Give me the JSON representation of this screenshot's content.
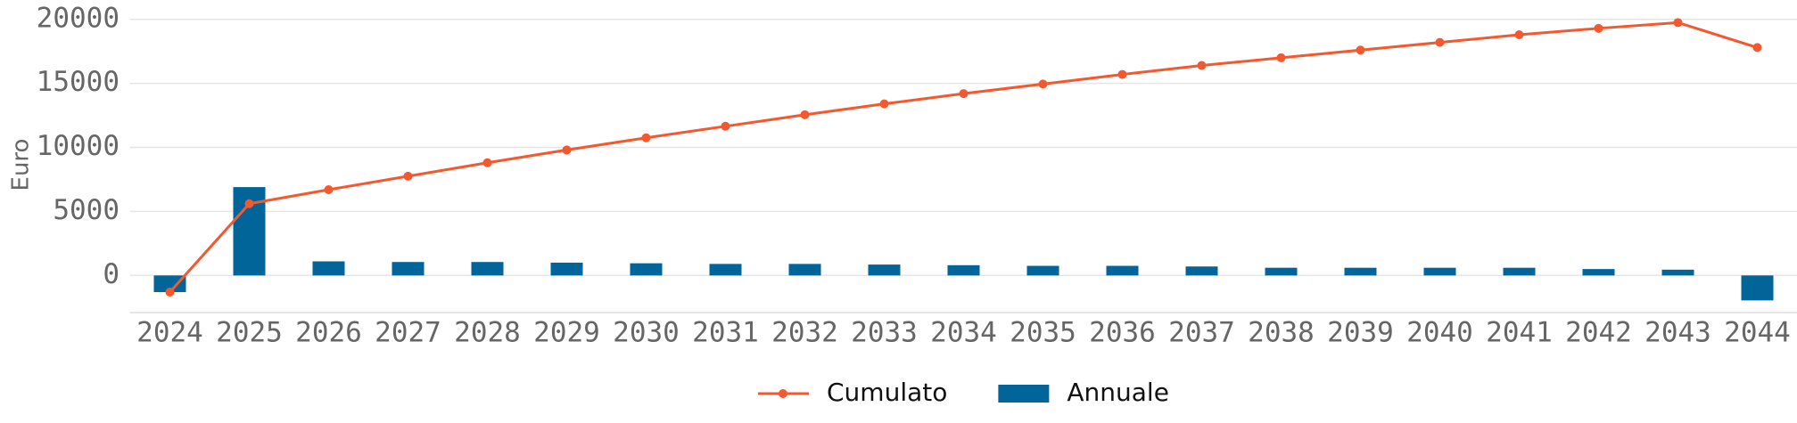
{
  "chart_data": {
    "type": "bar",
    "y_label": "Euro",
    "categories": [
      "2024",
      "2025",
      "2026",
      "2027",
      "2028",
      "2029",
      "2030",
      "2031",
      "2032",
      "2033",
      "2034",
      "2035",
      "2036",
      "2037",
      "2038",
      "2039",
      "2040",
      "2041",
      "2042",
      "2043",
      "2044"
    ],
    "series": [
      {
        "name": "Cumulato",
        "type": "line",
        "color": "#f4582f",
        "values": [
          -1300,
          5600,
          6700,
          7750,
          8800,
          9800,
          10750,
          11650,
          12550,
          13400,
          14200,
          14950,
          15700,
          16400,
          17000,
          17600,
          18200,
          18800,
          19300,
          19750,
          17800
        ]
      },
      {
        "name": "Annuale",
        "type": "bar",
        "color": "#02659a",
        "values": [
          -1300,
          6900,
          1100,
          1050,
          1050,
          1000,
          950,
          900,
          900,
          850,
          800,
          750,
          750,
          700,
          600,
          600,
          600,
          600,
          500,
          450,
          -1950
        ]
      }
    ],
    "ylim": [
      -2900,
      20400
    ],
    "yticks": [
      0,
      5000,
      10000,
      15000,
      20000
    ],
    "grid": true,
    "legend": "bottom"
  }
}
